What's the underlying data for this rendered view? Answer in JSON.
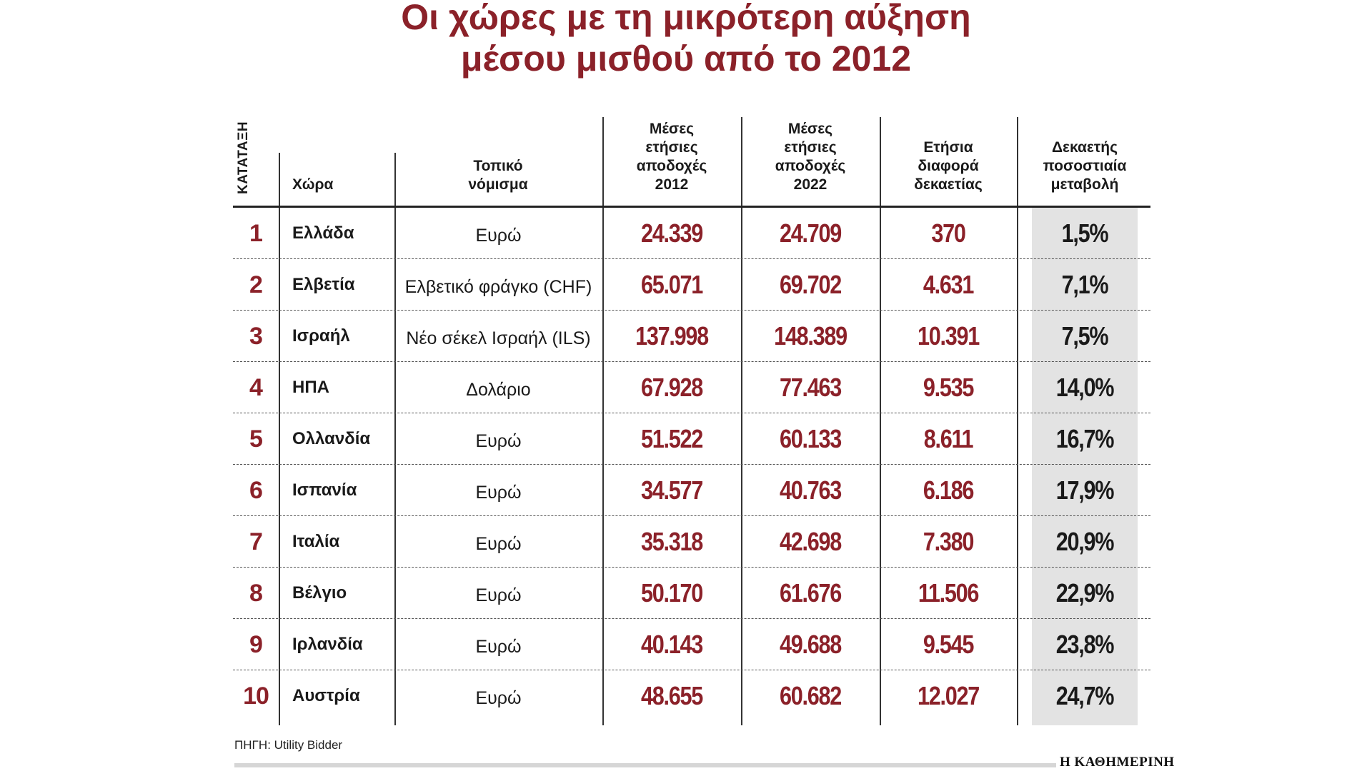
{
  "title_line1": "Οι χώρες με τη μικρότερη αύξηση",
  "title_line2": "μέσου μισθού από το 2012",
  "headers": {
    "rank": "ΚΑΤΑΤΑΞΗ",
    "country": "Χώρα",
    "currency": [
      "Τοπικό",
      "νόμισμα"
    ],
    "earn2012": [
      "Μέσες",
      "ετήσιες",
      "αποδοχές",
      "2012"
    ],
    "earn2022": [
      "Μέσες",
      "ετήσιες",
      "αποδοχές",
      "2022"
    ],
    "diff": [
      "Ετήσια",
      "διαφορά",
      "δεκαετίας"
    ],
    "pct": [
      "Δεκαετής",
      "ποσοστιαία",
      "μεταβολή"
    ]
  },
  "source": "ΠΗΓΗ: Utility Bidder",
  "brand": "Η ΚΑΘΗΜΕΡΙΝΗ",
  "colors": {
    "accent": "#8b2129",
    "shade": "#e3e3e3"
  },
  "chart_data": {
    "type": "table",
    "title": "Οι χώρες με τη μικρότερη αύξηση μέσου μισθού από το 2012",
    "columns": [
      "ΚΑΤΑΤΑΞΗ",
      "Χώρα",
      "Τοπικό νόμισμα",
      "Μέσες ετήσιες αποδοχές 2012",
      "Μέσες ετήσιες αποδοχές 2022",
      "Ετήσια διαφορά δεκαετίας",
      "Δεκαετής ποσοστιαία μεταβολή"
    ],
    "rows": [
      {
        "rank": "1",
        "country": "Ελλάδα",
        "currency": "Ευρώ",
        "earn2012": "24.339",
        "earn2022": "24.709",
        "diff": "370",
        "pct": "1,5%"
      },
      {
        "rank": "2",
        "country": "Ελβετία",
        "currency": "Ελβετικό φράγκο (CHF)",
        "earn2012": "65.071",
        "earn2022": "69.702",
        "diff": "4.631",
        "pct": "7,1%"
      },
      {
        "rank": "3",
        "country": "Ισραήλ",
        "currency": "Νέο σέκελ Ισραήλ (ILS)",
        "earn2012": "137.998",
        "earn2022": "148.389",
        "diff": "10.391",
        "pct": "7,5%"
      },
      {
        "rank": "4",
        "country": "ΗΠΑ",
        "currency": "Δολάριο",
        "earn2012": "67.928",
        "earn2022": "77.463",
        "diff": "9.535",
        "pct": "14,0%"
      },
      {
        "rank": "5",
        "country": "Ολλανδία",
        "currency": "Ευρώ",
        "earn2012": "51.522",
        "earn2022": "60.133",
        "diff": "8.611",
        "pct": "16,7%"
      },
      {
        "rank": "6",
        "country": "Ισπανία",
        "currency": "Ευρώ",
        "earn2012": "34.577",
        "earn2022": "40.763",
        "diff": "6.186",
        "pct": "17,9%"
      },
      {
        "rank": "7",
        "country": "Ιταλία",
        "currency": "Ευρώ",
        "earn2012": "35.318",
        "earn2022": "42.698",
        "diff": "7.380",
        "pct": "20,9%"
      },
      {
        "rank": "8",
        "country": "Βέλγιο",
        "currency": "Ευρώ",
        "earn2012": "50.170",
        "earn2022": "61.676",
        "diff": "11.506",
        "pct": "22,9%"
      },
      {
        "rank": "9",
        "country": "Ιρλανδία",
        "currency": "Ευρώ",
        "earn2012": "40.143",
        "earn2022": "49.688",
        "diff": "9.545",
        "pct": "23,8%"
      },
      {
        "rank": "10",
        "country": "Αυστρία",
        "currency": "Ευρώ",
        "earn2012": "48.655",
        "earn2022": "60.682",
        "diff": "12.027",
        "pct": "24,7%"
      }
    ]
  }
}
